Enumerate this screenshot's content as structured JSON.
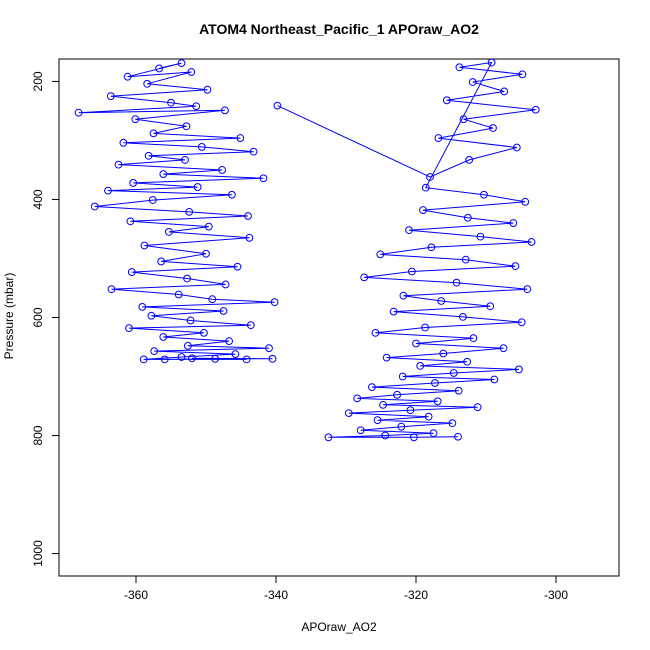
{
  "chart_data": {
    "type": "scatter",
    "title": "ATOM4 Northeast_Pacific_1 APOraw_AO2",
    "xlabel": "APOraw_AO2",
    "ylabel": "Pressure (mbar)",
    "xlim": [
      -371,
      -291
    ],
    "ylim": [
      1038,
      162
    ],
    "y_reversed": true,
    "x_ticks": [
      -360,
      -340,
      -320,
      -300
    ],
    "y_ticks": [
      200,
      400,
      600,
      800,
      1000
    ],
    "grid": false,
    "legend": "none",
    "series_color": "#0000ff",
    "marker": "open-circle",
    "connected": true,
    "series": [
      {
        "values": [
          [
            -356.7,
            178
          ],
          [
            -353.5,
            169
          ],
          [
            -361.2,
            192
          ],
          [
            -352.1,
            184
          ],
          [
            -358.4,
            204
          ],
          [
            -349.8,
            214
          ],
          [
            -363.6,
            225
          ],
          [
            -355.0,
            236
          ],
          [
            -351.4,
            242
          ],
          [
            -368.2,
            253
          ],
          [
            -347.3,
            249
          ],
          [
            -360.1,
            264
          ],
          [
            -352.8,
            276
          ],
          [
            -357.5,
            288
          ],
          [
            -345.1,
            296
          ],
          [
            -361.8,
            304
          ],
          [
            -350.6,
            311
          ],
          [
            -343.2,
            319
          ],
          [
            -358.2,
            326
          ],
          [
            -353.0,
            333
          ],
          [
            -362.5,
            341
          ],
          [
            -347.7,
            350
          ],
          [
            -356.1,
            357
          ],
          [
            -341.8,
            364
          ],
          [
            -360.4,
            372
          ],
          [
            -351.2,
            379
          ],
          [
            -364.0,
            385
          ],
          [
            -346.3,
            392
          ],
          [
            -357.6,
            401
          ],
          [
            -365.9,
            412
          ],
          [
            -352.4,
            421
          ],
          [
            -344.0,
            428
          ],
          [
            -360.8,
            437
          ],
          [
            -349.6,
            446
          ],
          [
            -355.3,
            455
          ],
          [
            -343.8,
            465
          ],
          [
            -358.8,
            478
          ],
          [
            -350.0,
            492
          ],
          [
            -356.4,
            505
          ],
          [
            -345.5,
            514
          ],
          [
            -360.6,
            523
          ],
          [
            -352.7,
            534
          ],
          [
            -347.2,
            544
          ],
          [
            -363.5,
            552
          ],
          [
            -353.9,
            561
          ],
          [
            -349.1,
            569
          ],
          [
            -340.2,
            574
          ],
          [
            -359.1,
            582
          ],
          [
            -347.5,
            589
          ],
          [
            -357.8,
            597
          ],
          [
            -352.2,
            605
          ],
          [
            -343.6,
            613
          ],
          [
            -361.0,
            618
          ],
          [
            -350.3,
            626
          ],
          [
            -356.1,
            633
          ],
          [
            -346.7,
            640
          ],
          [
            -352.6,
            648
          ],
          [
            -341.0,
            652
          ],
          [
            -357.4,
            657
          ],
          [
            -345.8,
            662
          ],
          [
            -353.5,
            667
          ],
          [
            -358.9,
            671
          ],
          [
            -344.2,
            671
          ],
          [
            -355.9,
            671
          ],
          [
            -348.7,
            670
          ],
          [
            -340.5,
            670
          ],
          [
            -352.0,
            669
          ]
        ]
      },
      {
        "values": [
          [
            -339.8,
            241
          ],
          [
            -318.0,
            362
          ],
          [
            -312.4,
            333
          ],
          [
            -305.6,
            312
          ],
          [
            -316.8,
            296
          ],
          [
            -309.0,
            279
          ],
          [
            -313.2,
            264
          ],
          [
            -302.9,
            248
          ],
          [
            -315.6,
            232
          ],
          [
            -307.4,
            217
          ],
          [
            -311.9,
            201
          ],
          [
            -304.8,
            188
          ],
          [
            -313.8,
            176
          ],
          [
            -309.2,
            168
          ],
          [
            -318.6,
            380
          ],
          [
            -310.3,
            392
          ],
          [
            -304.4,
            404
          ],
          [
            -319.0,
            418
          ],
          [
            -312.6,
            431
          ],
          [
            -306.1,
            440
          ],
          [
            -321.0,
            452
          ],
          [
            -310.8,
            463
          ],
          [
            -303.5,
            472
          ],
          [
            -317.8,
            481
          ],
          [
            -325.1,
            493
          ],
          [
            -312.9,
            502
          ],
          [
            -305.8,
            513
          ],
          [
            -320.6,
            522
          ],
          [
            -327.4,
            532
          ],
          [
            -314.2,
            541
          ],
          [
            -304.1,
            552
          ],
          [
            -321.8,
            563
          ],
          [
            -316.4,
            572
          ],
          [
            -309.4,
            581
          ],
          [
            -323.2,
            590
          ],
          [
            -313.3,
            599
          ],
          [
            -304.9,
            608
          ],
          [
            -318.7,
            617
          ],
          [
            -325.8,
            626
          ],
          [
            -311.8,
            635
          ],
          [
            -320.0,
            644
          ],
          [
            -307.5,
            652
          ],
          [
            -316.1,
            661
          ],
          [
            -324.2,
            668
          ],
          [
            -312.7,
            675
          ],
          [
            -319.4,
            682
          ],
          [
            -305.3,
            688
          ],
          [
            -314.6,
            694
          ],
          [
            -321.9,
            700
          ],
          [
            -308.8,
            705
          ],
          [
            -317.3,
            711
          ],
          [
            -326.3,
            718
          ],
          [
            -313.9,
            724
          ],
          [
            -322.7,
            731
          ],
          [
            -328.4,
            737
          ],
          [
            -316.9,
            742
          ],
          [
            -324.7,
            748
          ],
          [
            -311.2,
            752
          ],
          [
            -320.8,
            757
          ],
          [
            -329.6,
            762
          ],
          [
            -318.2,
            768
          ],
          [
            -325.5,
            774
          ],
          [
            -314.8,
            779
          ],
          [
            -322.1,
            785
          ],
          [
            -327.9,
            791
          ],
          [
            -317.5,
            796
          ],
          [
            -324.4,
            800
          ],
          [
            -332.5,
            803
          ],
          [
            -320.3,
            803
          ],
          [
            -314.0,
            802
          ]
        ]
      }
    ]
  }
}
